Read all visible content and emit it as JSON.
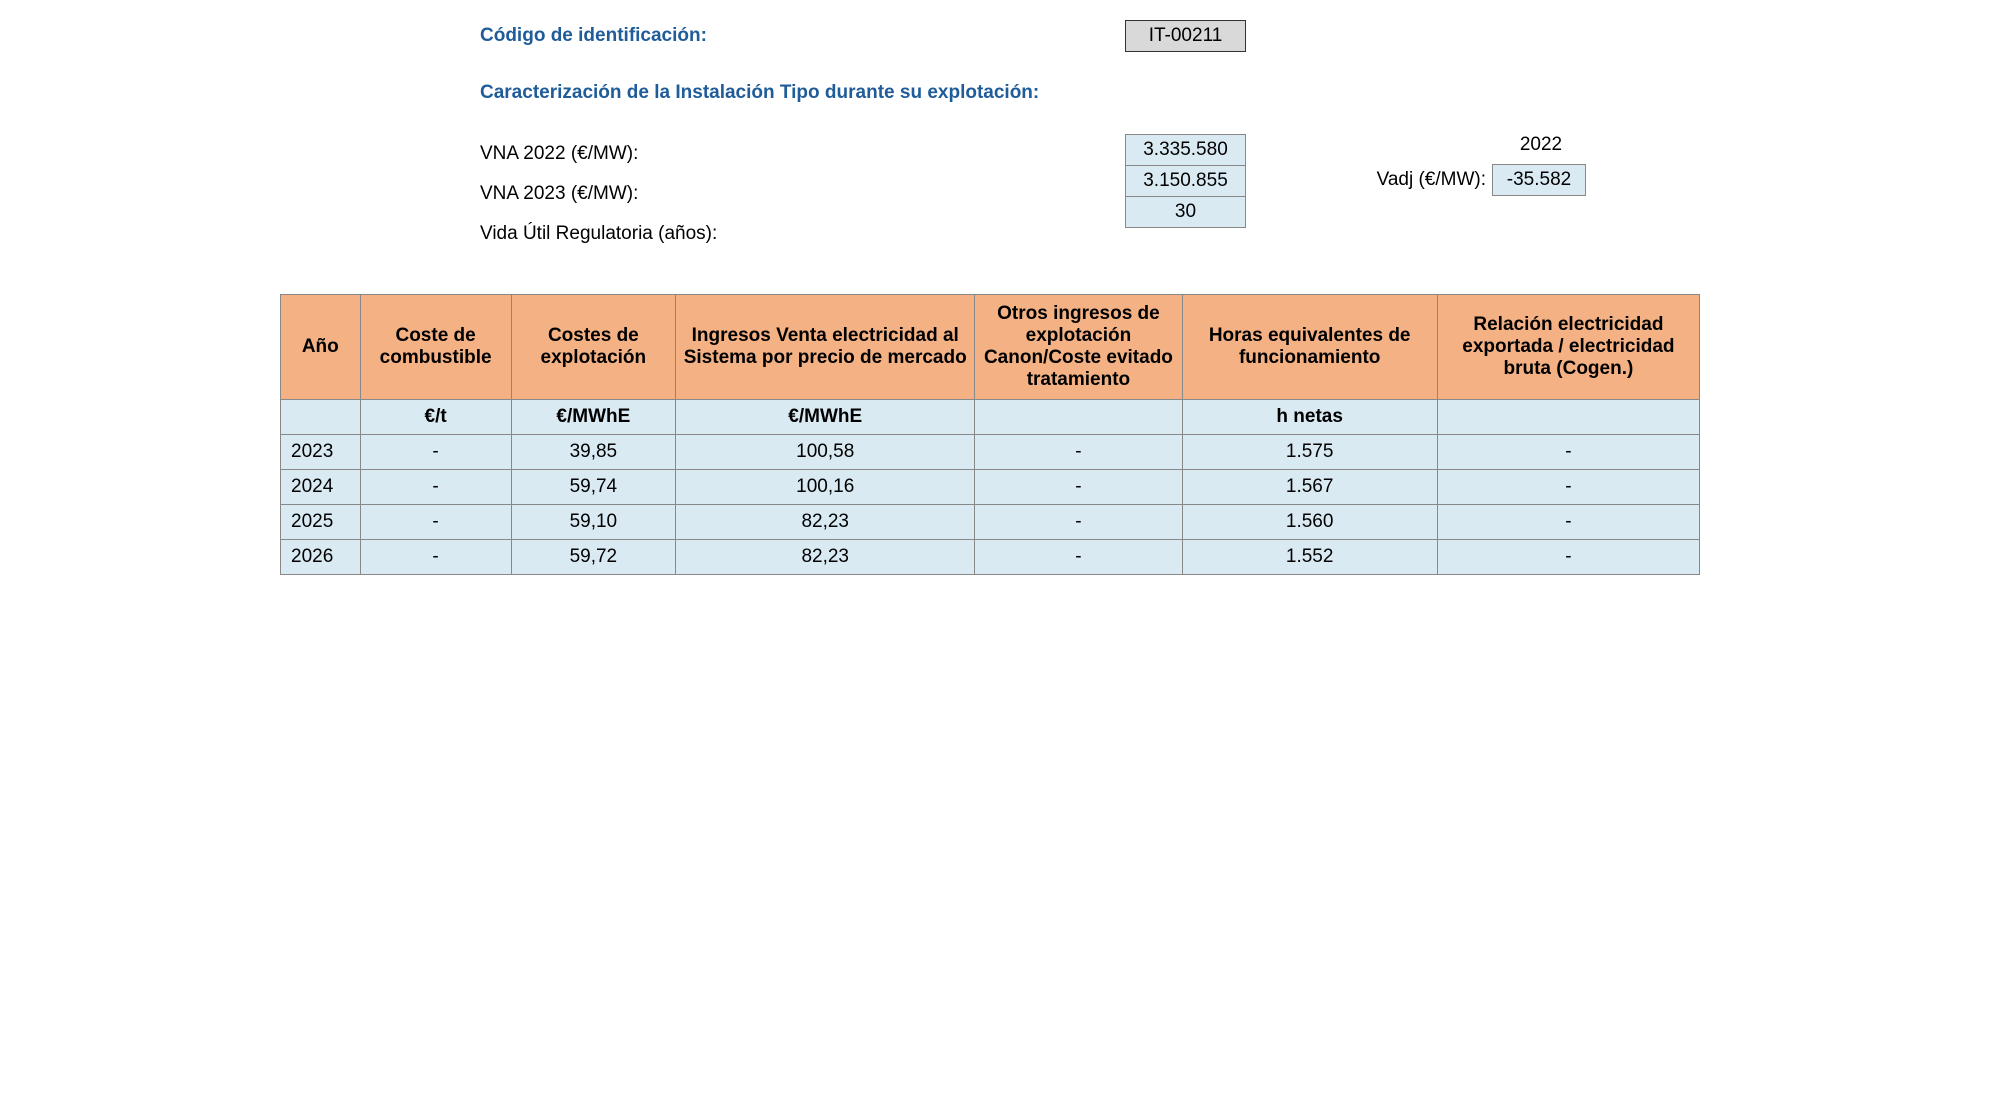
{
  "header": {
    "id_label": "Código de identificación:",
    "id_value": "IT-00211",
    "section_title": "Caracterización de la Instalación Tipo durante su explotación:",
    "params": {
      "vna2022_label": "VNA 2022 (€/MW):",
      "vna2022_value": "3.335.580",
      "vna2023_label": "VNA 2023 (€/MW):",
      "vna2023_value": "3.150.855",
      "vida_label": "Vida Útil Regulatoria (años):",
      "vida_value": "30",
      "year_ref": "2022",
      "vadj_label": "Vadj (€/MW):",
      "vadj_value": "-35.582"
    }
  },
  "table": {
    "columns": [
      "Año",
      "Coste de combustible",
      "Costes de explotación",
      "Ingresos Venta electricidad al Sistema por precio de mercado",
      "Otros ingresos de explotación Canon/Coste evitado tratamiento",
      "Horas equivalentes de funcionamiento",
      "Relación electricidad exportada / electricidad bruta (Cogen.)"
    ],
    "units": [
      "",
      "€/t",
      "€/MWhE",
      "€/MWhE",
      "",
      "h netas",
      ""
    ],
    "rows": [
      {
        "year": "2023",
        "comb": "-",
        "expl": "39,85",
        "ing": "100,58",
        "otros": "-",
        "horas": "1.575",
        "rel": "-"
      },
      {
        "year": "2024",
        "comb": "-",
        "expl": "59,74",
        "ing": "100,16",
        "otros": "-",
        "horas": "1.567",
        "rel": "-"
      },
      {
        "year": "2025",
        "comb": "-",
        "expl": "59,10",
        "ing": "82,23",
        "otros": "-",
        "horas": "1.560",
        "rel": "-"
      },
      {
        "year": "2026",
        "comb": "-",
        "expl": "59,72",
        "ing": "82,23",
        "otros": "-",
        "horas": "1.552",
        "rel": "-"
      }
    ],
    "colors": {
      "header_bg": "#f4b183",
      "cell_bg": "#daeaf3",
      "border": "#888888",
      "text_header": "#000000",
      "title_color": "#1f5c99"
    }
  }
}
